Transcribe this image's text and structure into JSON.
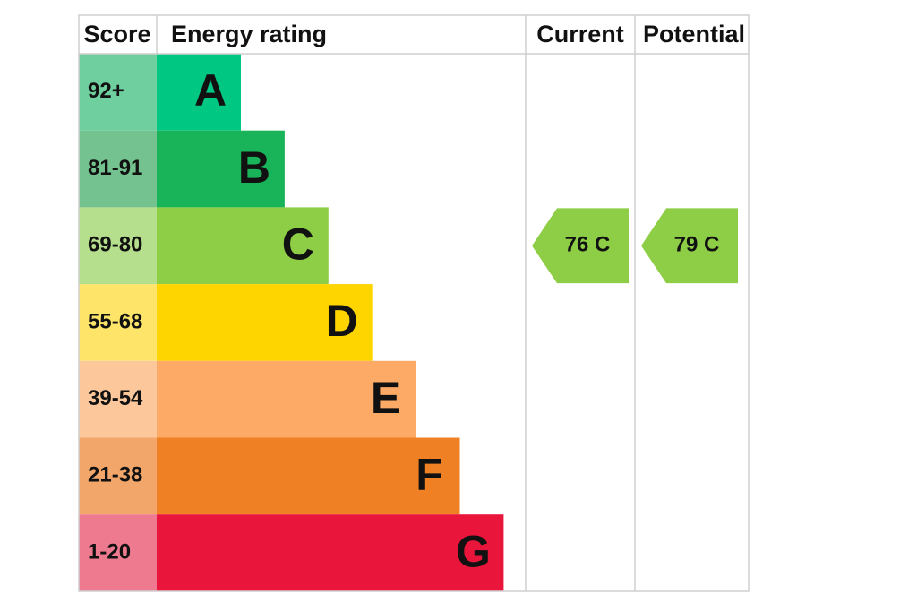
{
  "header": {
    "score": "Score",
    "rating": "Energy rating",
    "current": "Current",
    "potential": "Potential"
  },
  "rows": [
    {
      "score": "92+",
      "band": "A"
    },
    {
      "score": "81-91",
      "band": "B"
    },
    {
      "score": "69-80",
      "band": "C"
    },
    {
      "score": "55-68",
      "band": "D"
    },
    {
      "score": "39-54",
      "band": "E"
    },
    {
      "score": "21-38",
      "band": "F"
    },
    {
      "score": "1-20",
      "band": "G"
    }
  ],
  "current": {
    "label": "76 C",
    "row": 2
  },
  "potential": {
    "label": "79 C",
    "row": 2
  }
}
